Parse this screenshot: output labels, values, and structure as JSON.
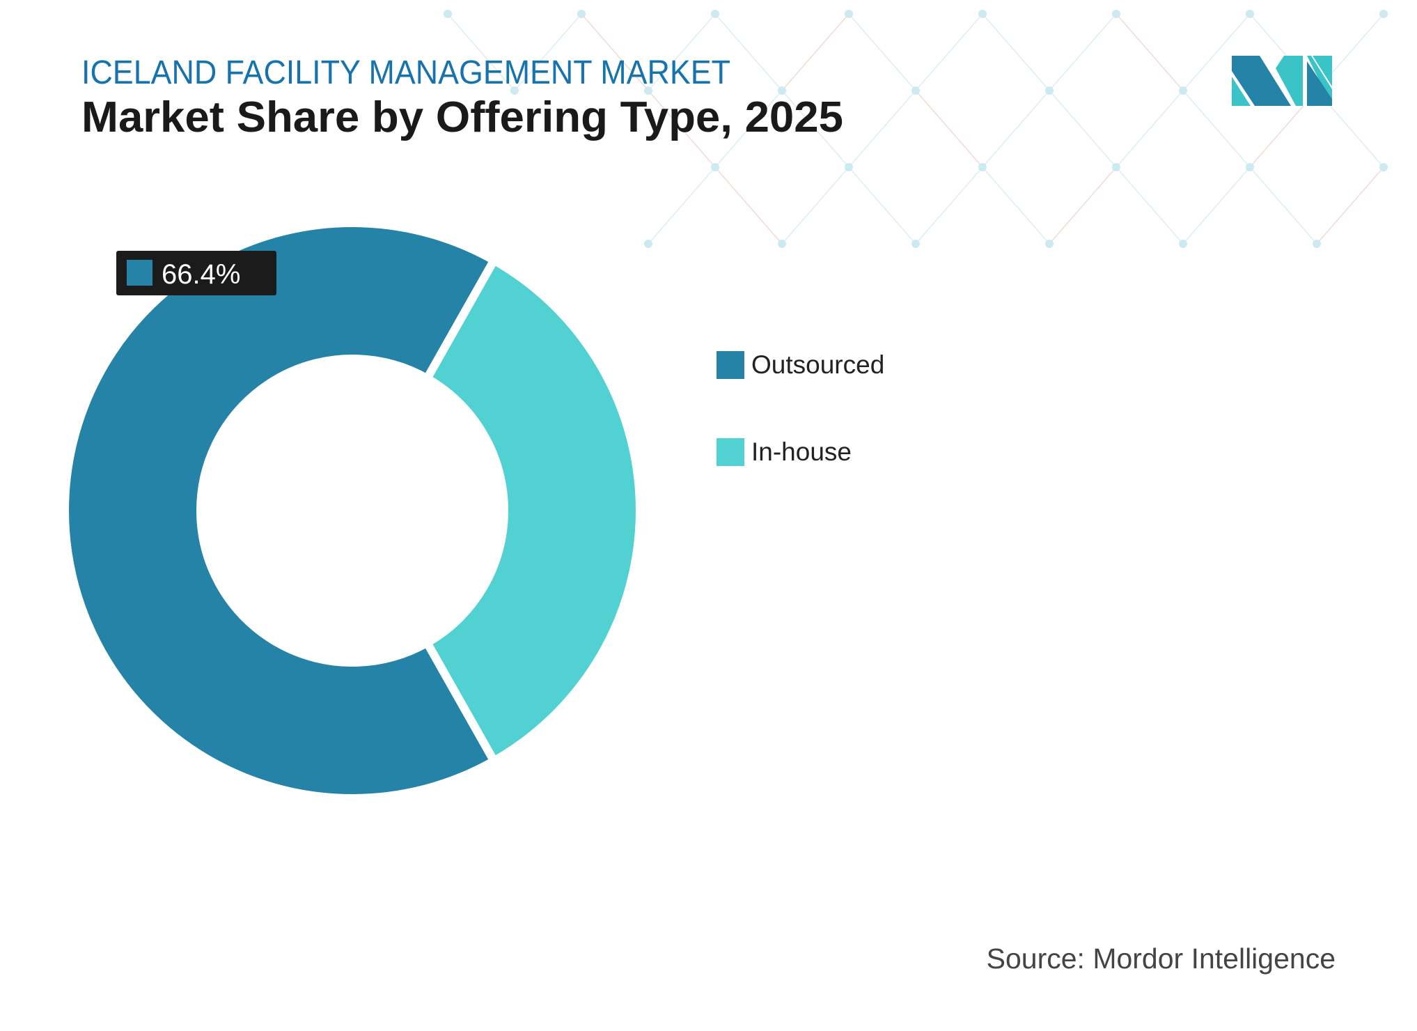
{
  "header": {
    "kicker": "ICELAND FACILITY MANAGEMENT MARKET",
    "title": "Market Share by Offering Type, 2025"
  },
  "source": "Source: Mordor Intelligence",
  "colors": {
    "outsourced": "#2683A8",
    "in_house": "#52D1D3",
    "kicker": "#1673AE",
    "title": "#1a1a1a",
    "label_box": "#1b1b1b"
  },
  "chart_data": {
    "type": "pie",
    "variant": "donut",
    "categories": [
      "Outsourced",
      "In-house"
    ],
    "values": [
      66.4,
      33.6
    ],
    "unit": "%",
    "data_labels": [
      {
        "category": "Outsourced",
        "text": "66.4%"
      }
    ],
    "legend_position": "right"
  }
}
